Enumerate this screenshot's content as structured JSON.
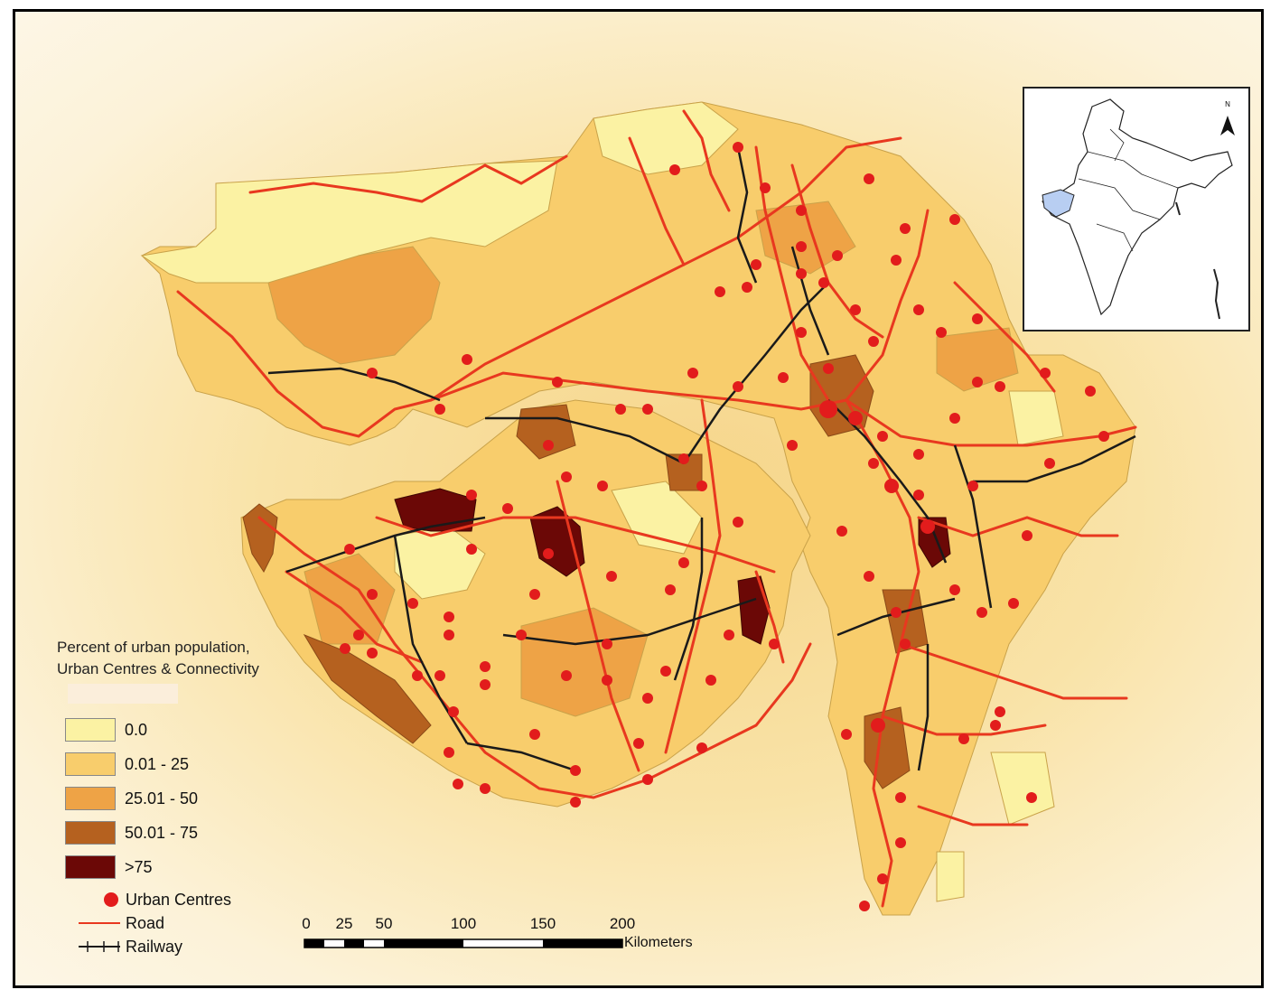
{
  "legend": {
    "title_line1": "Percent of urban population,",
    "title_line2": "Urban Centres & Connectivity",
    "classes": [
      {
        "label": "0.0",
        "color": "#fbf2a3"
      },
      {
        "label": "0.01 - 25",
        "color": "#f8cd6c"
      },
      {
        "label": "25.01 - 50",
        "color": "#eea346"
      },
      {
        "label": "50.01 - 75",
        "color": "#b5611f"
      },
      {
        "label": ">75",
        "color": "#6b0806"
      }
    ],
    "symbols": {
      "urban_centres": "Urban Centres",
      "road": "Road",
      "railway": "Railway"
    }
  },
  "scale_bar": {
    "ticks": [
      "0",
      "25",
      "50",
      "100",
      "150",
      "200"
    ],
    "unit": "Kilometers"
  },
  "inset": {
    "north_label": "N",
    "highlight_color": "#b8cef2"
  },
  "colors": {
    "road": "#e8381f",
    "railway": "#1a1a1a",
    "urban_centre": "#e21c1c"
  }
}
